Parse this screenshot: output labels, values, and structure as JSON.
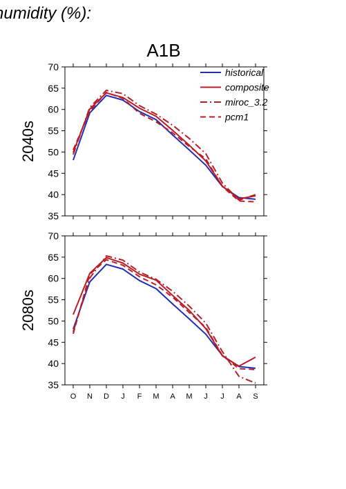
{
  "header_text": "humidity (%):",
  "colors": {
    "historical": "#1f2db5",
    "model": "#b81c24",
    "axis": "#000000"
  },
  "chart_data": [
    {
      "type": "line",
      "title": "A1B",
      "ylabel": "2040s",
      "xlabel": "",
      "categories": [
        "O",
        "N",
        "D",
        "J",
        "F",
        "M",
        "A",
        "M",
        "J",
        "J",
        "A",
        "S"
      ],
      "ylim": [
        35,
        70
      ],
      "yticks": [
        35,
        40,
        45,
        50,
        55,
        60,
        65,
        70
      ],
      "grid": false,
      "legend_position": "top-right",
      "series": [
        {
          "name": "historical",
          "style": "solid",
          "color": "#1f2db5",
          "values": [
            48.1,
            59.2,
            63.3,
            62.2,
            59.5,
            57.6,
            54.0,
            50.5,
            46.9,
            41.9,
            39.3,
            38.9
          ]
        },
        {
          "name": "composite",
          "style": "solid",
          "color": "#b81c24",
          "values": [
            49.9,
            60.1,
            63.9,
            62.8,
            60.3,
            58.4,
            55.1,
            51.6,
            47.9,
            42.0,
            39.0,
            39.7
          ]
        },
        {
          "name": "miroc_3.2",
          "style": "dashdot",
          "color": "#b81c24",
          "values": [
            49.4,
            60.5,
            64.5,
            63.7,
            60.9,
            58.9,
            56.3,
            53.2,
            49.6,
            42.7,
            38.7,
            40.0
          ]
        },
        {
          "name": "pcm1",
          "style": "dashed",
          "color": "#b81c24",
          "values": [
            50.5,
            59.6,
            64.0,
            62.6,
            59.1,
            57.1,
            54.5,
            51.3,
            48.4,
            41.9,
            38.5,
            38.3
          ]
        }
      ]
    },
    {
      "type": "line",
      "title": "",
      "ylabel": "2080s",
      "xlabel": "",
      "categories": [
        "O",
        "N",
        "D",
        "J",
        "F",
        "M",
        "A",
        "M",
        "J",
        "J",
        "A",
        "S"
      ],
      "ylim": [
        35,
        70
      ],
      "yticks": [
        35,
        40,
        45,
        50,
        55,
        60,
        65,
        70
      ],
      "grid": false,
      "series": [
        {
          "name": "historical",
          "style": "solid",
          "color": "#1f2db5",
          "values": [
            48.1,
            59.2,
            63.3,
            62.2,
            59.5,
            57.6,
            54.0,
            50.5,
            46.9,
            41.9,
            39.3,
            38.9
          ]
        },
        {
          "name": "composite",
          "style": "solid",
          "color": "#b81c24",
          "values": [
            51.5,
            61.2,
            64.9,
            63.6,
            61.0,
            59.6,
            56.0,
            52.5,
            48.2,
            41.8,
            39.4,
            41.5
          ]
        },
        {
          "name": "miroc_3.2",
          "style": "dashdot",
          "color": "#b81c24",
          "values": [
            47.5,
            60.1,
            65.3,
            64.3,
            61.5,
            59.8,
            57.0,
            53.5,
            49.5,
            42.8,
            37.0,
            35.4
          ]
        },
        {
          "name": "pcm1",
          "style": "dashed",
          "color": "#b81c24",
          "values": [
            47.0,
            61.0,
            64.4,
            63.1,
            60.4,
            58.5,
            55.6,
            52.0,
            48.5,
            41.9,
            38.8,
            38.6
          ]
        }
      ]
    }
  ]
}
